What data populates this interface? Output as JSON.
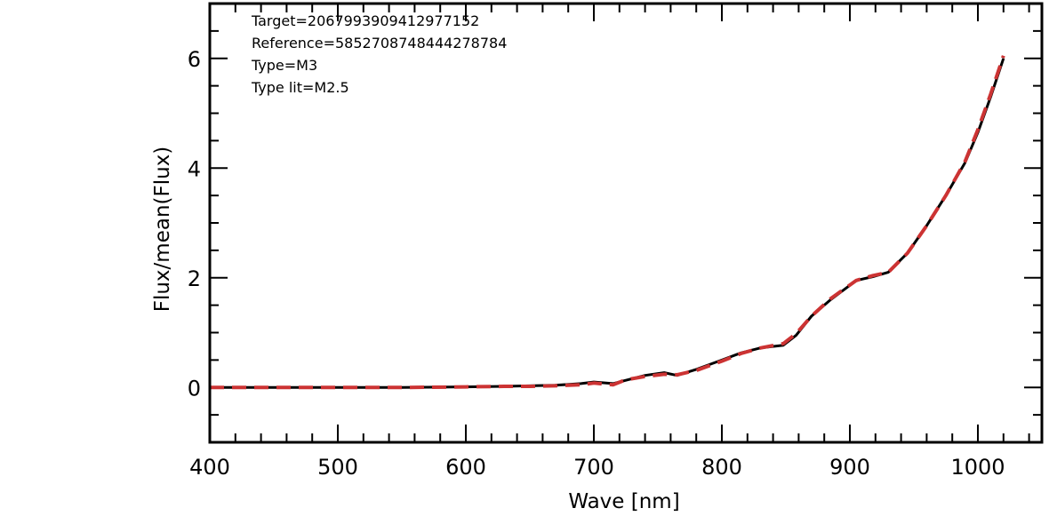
{
  "chart_data": {
    "type": "line",
    "title": "",
    "xlabel": "Wave [nm]",
    "ylabel": "Flux/mean(Flux)",
    "xlim": [
      400,
      1050
    ],
    "ylim": [
      -1,
      7
    ],
    "x_ticks": [
      400,
      500,
      600,
      700,
      800,
      900,
      1000
    ],
    "y_ticks": [
      0,
      2,
      4,
      6
    ],
    "x_tick_labels": [
      "400",
      "500",
      "600",
      "700",
      "800",
      "900",
      "1000"
    ],
    "y_tick_labels": [
      "0",
      "2",
      "4",
      "6"
    ],
    "grid": false,
    "annotations": [
      "Target=2067993909412977152",
      "Reference=5852708748444278784",
      "Type=M3",
      "Type lit=M2.5"
    ],
    "series": [
      {
        "style": "solid",
        "color": "#000000",
        "x": [
          400,
          450,
          500,
          550,
          600,
          630,
          650,
          670,
          690,
          700,
          715,
          725,
          740,
          755,
          765,
          780,
          800,
          815,
          830,
          848,
          858,
          870,
          885,
          905,
          918,
          930,
          945,
          960,
          975,
          990,
          1000,
          1010,
          1020
        ],
        "y": [
          0,
          0,
          0,
          0,
          0.01,
          0.02,
          0.03,
          0.04,
          0.07,
          0.1,
          0.07,
          0.13,
          0.22,
          0.27,
          0.22,
          0.33,
          0.5,
          0.63,
          0.72,
          0.77,
          0.95,
          1.3,
          1.6,
          1.95,
          2.02,
          2.1,
          2.45,
          2.95,
          3.5,
          4.1,
          4.65,
          5.3,
          6.0
        ]
      },
      {
        "style": "dashed",
        "color": "#cc3333",
        "x": [
          400,
          450,
          500,
          550,
          600,
          630,
          650,
          670,
          690,
          700,
          715,
          725,
          740,
          755,
          765,
          780,
          800,
          815,
          830,
          848,
          858,
          870,
          885,
          905,
          918,
          930,
          945,
          960,
          975,
          990,
          1000,
          1010,
          1020
        ],
        "y": [
          0,
          0,
          0,
          0,
          0.01,
          0.02,
          0.02,
          0.03,
          0.05,
          0.08,
          0.05,
          0.14,
          0.2,
          0.24,
          0.23,
          0.31,
          0.48,
          0.62,
          0.72,
          0.8,
          0.98,
          1.3,
          1.62,
          1.95,
          2.04,
          2.1,
          2.45,
          2.95,
          3.5,
          4.12,
          4.7,
          5.35,
          6.05
        ]
      }
    ]
  }
}
